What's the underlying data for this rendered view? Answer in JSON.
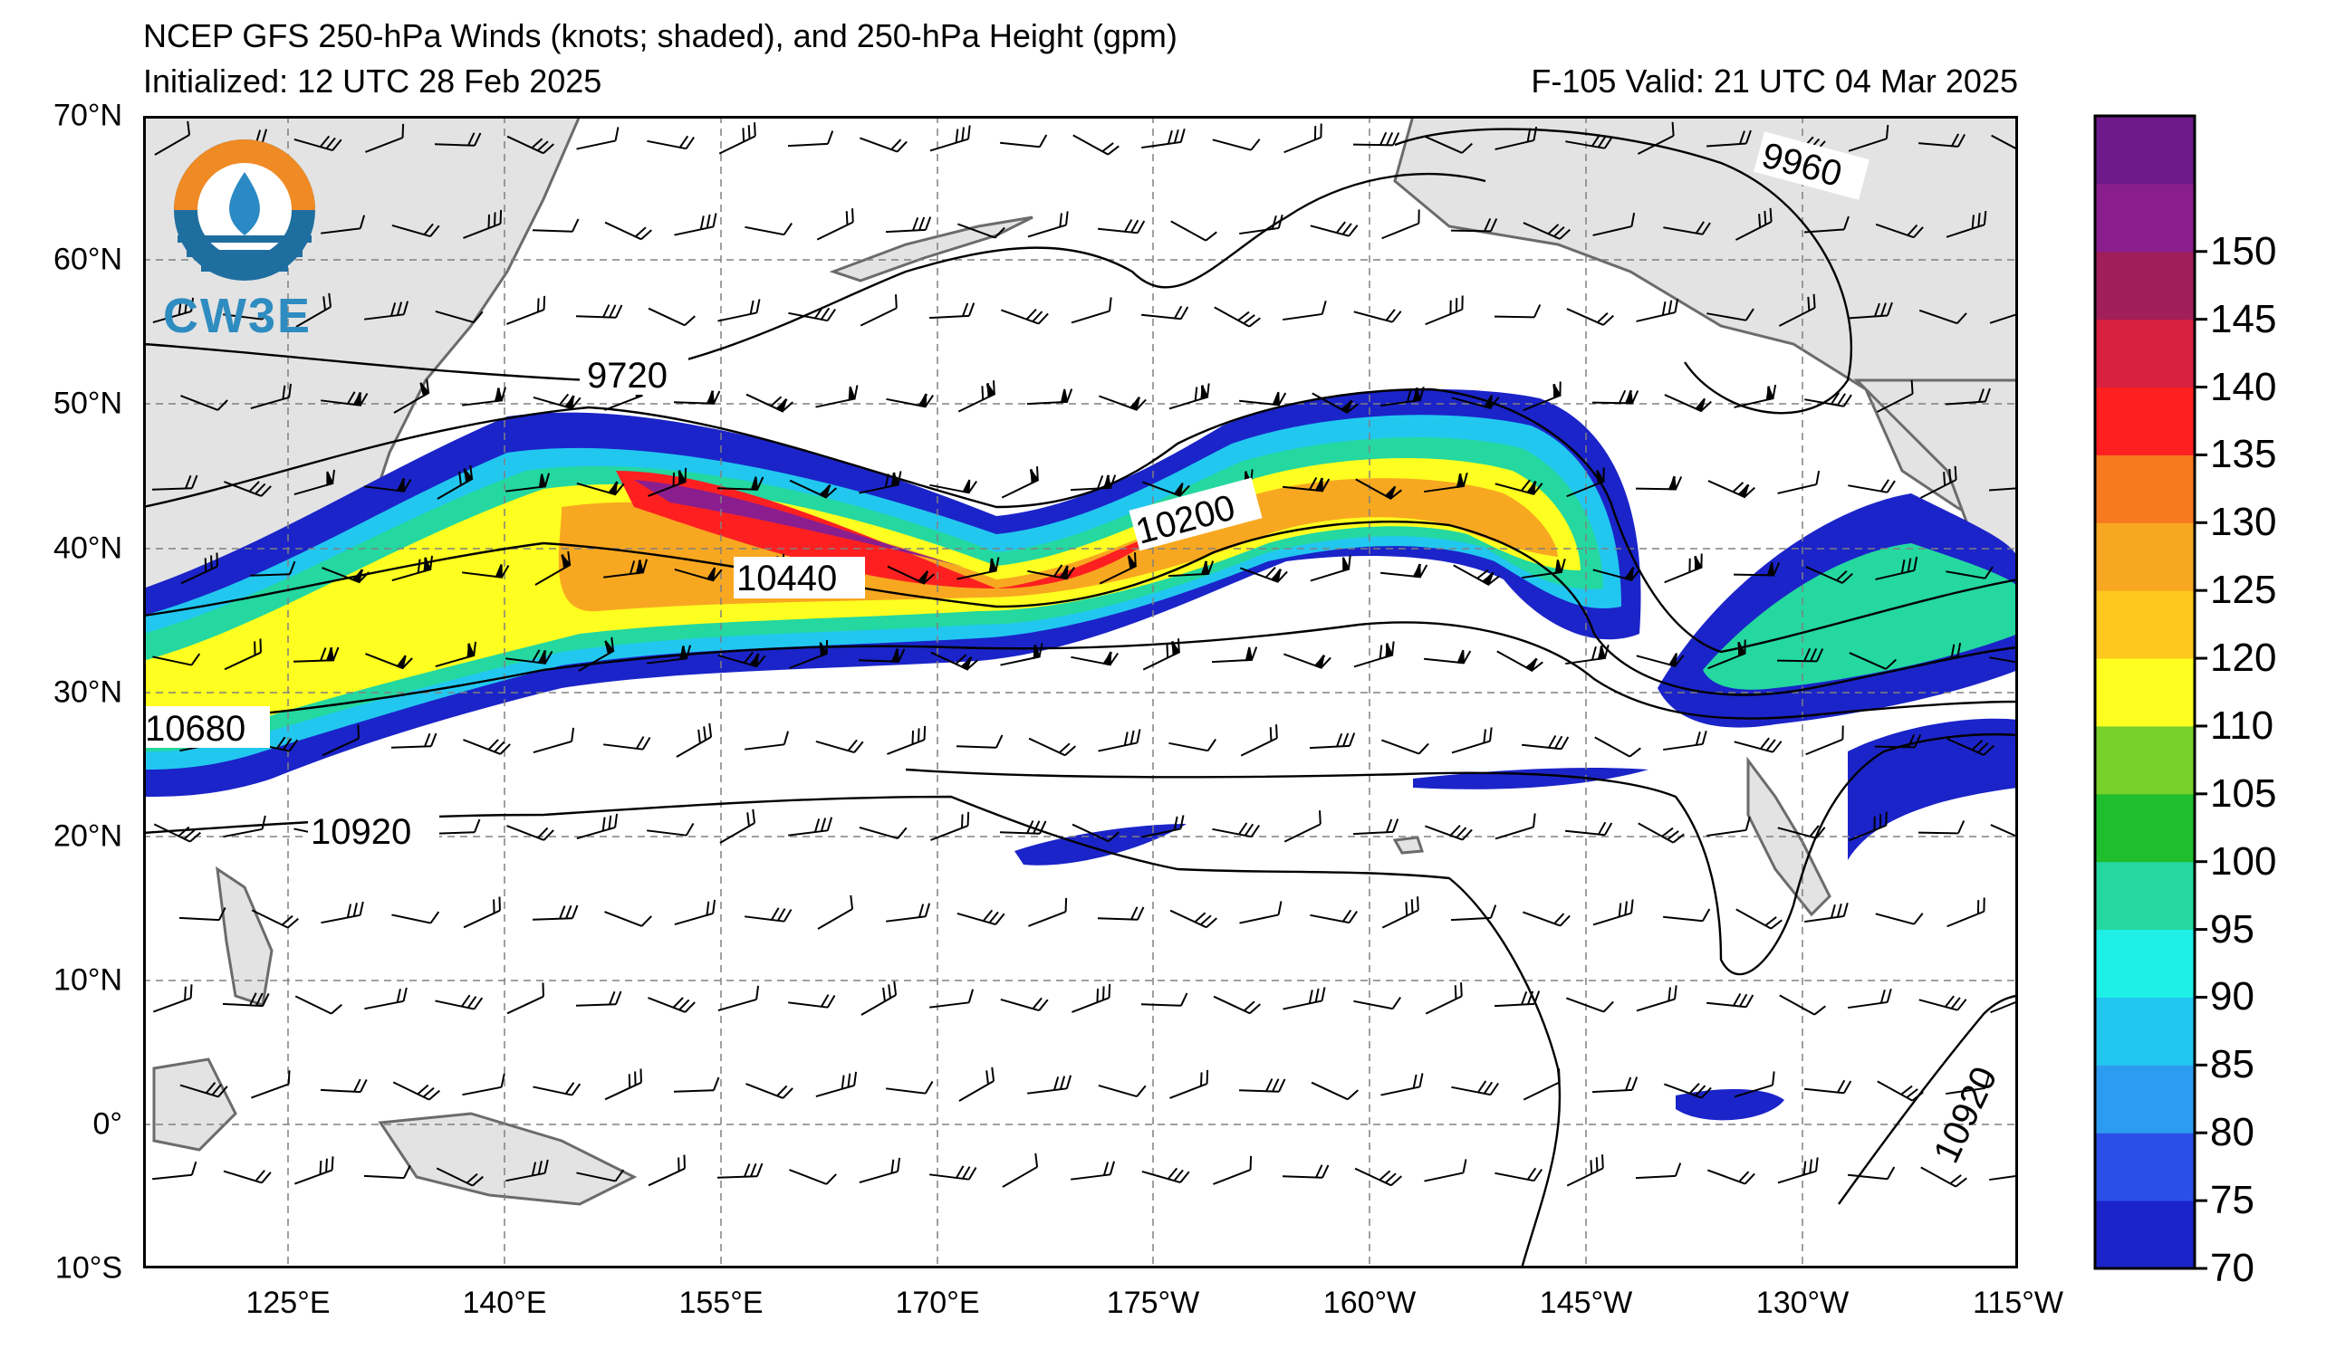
{
  "title": {
    "line1": "NCEP GFS 250-hPa Winds (knots; shaded), and 250-hPa Height (gpm)",
    "line2": "Initialized: 12 UTC 28 Feb 2025",
    "valid": "F-105  Valid: 21 UTC 04 Mar 2025"
  },
  "logo": {
    "text": "CW3E",
    "icon": "cw3e-logo-icon"
  },
  "axes": {
    "lat_labels": [
      "70°N",
      "60°N",
      "50°N",
      "40°N",
      "30°N",
      "20°N",
      "10°N",
      "0°",
      "10°S"
    ],
    "lon_labels": [
      "125°E",
      "140°E",
      "155°E",
      "170°E",
      "175°W",
      "160°W",
      "145°W",
      "130°W",
      "115°W"
    ]
  },
  "contour_labels": [
    "9720",
    "9960",
    "10200",
    "10440",
    "10680",
    "10920",
    "10920"
  ],
  "colorbar": {
    "ticks": [
      "70",
      "75",
      "80",
      "85",
      "90",
      "95",
      "100",
      "105",
      "110",
      "120",
      "125",
      "130",
      "135",
      "140",
      "145",
      "150"
    ],
    "colors": [
      "#1b24c8",
      "#2a4fe8",
      "#2c9cf0",
      "#22c7f0",
      "#1ef0e8",
      "#24d8a0",
      "#1fbe2c",
      "#78d02a",
      "#fefe20",
      "#fec81e",
      "#f8a820",
      "#f87a20",
      "#fe2020",
      "#d82040",
      "#a01e5a",
      "#8a1e8e",
      "#6e1a8a"
    ]
  }
}
